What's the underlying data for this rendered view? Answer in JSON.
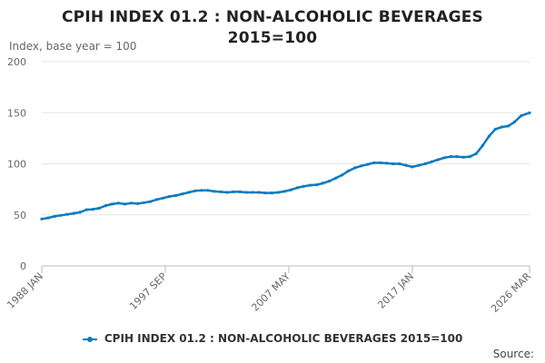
{
  "chart_data": {
    "type": "line",
    "title_lines": [
      "CPIH INDEX 01.2 : NON-ALCOHOLIC BEVERAGES",
      "2015=100"
    ],
    "subtitle": "Index, base year = 100",
    "ylim": [
      0,
      200
    ],
    "yticks": [
      0,
      50,
      100,
      150,
      200
    ],
    "xlim": [
      1988.0,
      2026.17
    ],
    "xticks": [
      {
        "label": "1988 JAN",
        "t": 1988.0
      },
      {
        "label": "1997 SEP",
        "t": 1997.67
      },
      {
        "label": "2007 MAY",
        "t": 2007.33
      },
      {
        "label": "2017 JAN",
        "t": 2017.0
      },
      {
        "label": "2026 MAR",
        "t": 2026.17
      }
    ],
    "grid": true,
    "legend_position": "bottom",
    "series": [
      {
        "name": "CPIH INDEX 01.2 : NON-ALCOHOLIC BEVERAGES 2015=100",
        "color": "#0a7bbf",
        "points": [
          [
            1988.0,
            46
          ],
          [
            1988.5,
            47
          ],
          [
            1989.0,
            48.5
          ],
          [
            1989.5,
            49.5
          ],
          [
            1990.0,
            50.5
          ],
          [
            1990.5,
            51.5
          ],
          [
            1991.0,
            52.5
          ],
          [
            1991.5,
            55
          ],
          [
            1992.0,
            55.5
          ],
          [
            1992.5,
            56.5
          ],
          [
            1993.0,
            59
          ],
          [
            1993.5,
            60.5
          ],
          [
            1994.0,
            61.5
          ],
          [
            1994.5,
            60.5
          ],
          [
            1995.0,
            61.5
          ],
          [
            1995.5,
            61
          ],
          [
            1996.0,
            62
          ],
          [
            1996.5,
            63
          ],
          [
            1997.0,
            65
          ],
          [
            1997.5,
            66.5
          ],
          [
            1998.0,
            68
          ],
          [
            1998.5,
            69
          ],
          [
            1999.0,
            70.5
          ],
          [
            1999.5,
            72
          ],
          [
            2000.0,
            73.5
          ],
          [
            2000.5,
            74
          ],
          [
            2001.0,
            74
          ],
          [
            2001.5,
            73
          ],
          [
            2002.0,
            72.5
          ],
          [
            2002.5,
            72
          ],
          [
            2003.0,
            72.5
          ],
          [
            2003.5,
            72.5
          ],
          [
            2004.0,
            72
          ],
          [
            2004.5,
            72
          ],
          [
            2005.0,
            72
          ],
          [
            2005.5,
            71.5
          ],
          [
            2006.0,
            71.5
          ],
          [
            2006.5,
            72
          ],
          [
            2007.0,
            73
          ],
          [
            2007.5,
            74.5
          ],
          [
            2008.0,
            76.5
          ],
          [
            2008.5,
            78
          ],
          [
            2009.0,
            79
          ],
          [
            2009.5,
            79.5
          ],
          [
            2010.0,
            81
          ],
          [
            2010.5,
            83
          ],
          [
            2011.0,
            86
          ],
          [
            2011.5,
            89
          ],
          [
            2012.0,
            93
          ],
          [
            2012.5,
            96
          ],
          [
            2013.0,
            98
          ],
          [
            2013.5,
            99.5
          ],
          [
            2014.0,
            101
          ],
          [
            2014.5,
            101
          ],
          [
            2015.0,
            100.5
          ],
          [
            2015.5,
            100
          ],
          [
            2016.0,
            100
          ],
          [
            2016.5,
            98.5
          ],
          [
            2017.0,
            97
          ],
          [
            2017.5,
            98.5
          ],
          [
            2018.0,
            100
          ],
          [
            2018.5,
            102
          ],
          [
            2019.0,
            104
          ],
          [
            2019.5,
            106
          ],
          [
            2020.0,
            107
          ],
          [
            2020.5,
            107
          ],
          [
            2021.0,
            106.5
          ],
          [
            2021.5,
            107
          ],
          [
            2022.0,
            110
          ],
          [
            2022.5,
            118
          ],
          [
            2023.0,
            127
          ],
          [
            2023.5,
            134
          ],
          [
            2024.0,
            136
          ],
          [
            2024.5,
            137
          ],
          [
            2025.0,
            141
          ],
          [
            2025.5,
            147
          ],
          [
            2026.17,
            150
          ]
        ]
      }
    ]
  },
  "legend": {
    "label": "CPIH INDEX 01.2 : NON-ALCOHOLIC BEVERAGES 2015=100"
  },
  "footer": {
    "source_label": "Source:"
  }
}
